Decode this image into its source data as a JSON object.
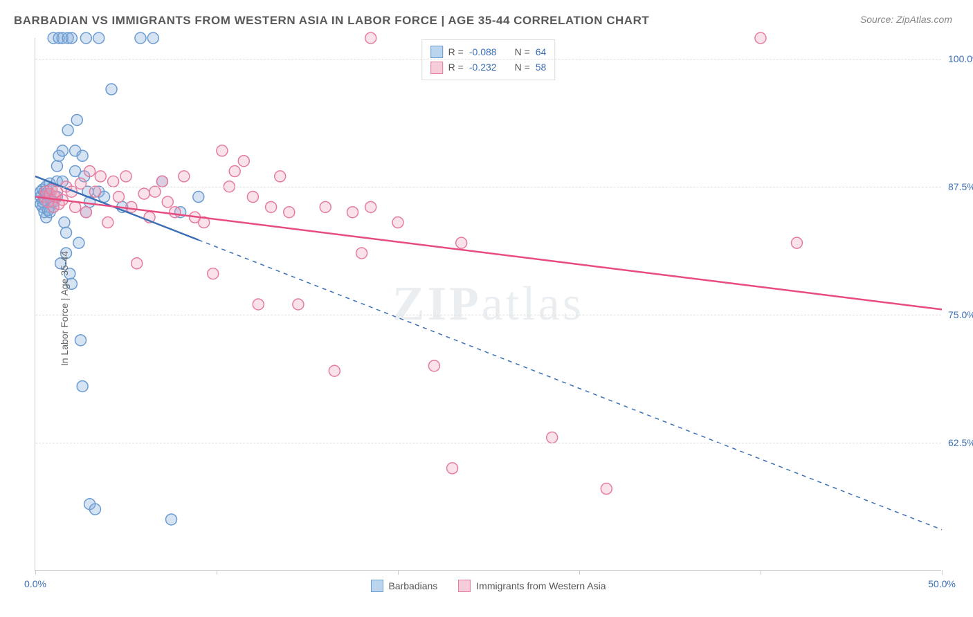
{
  "title": "BARBADIAN VS IMMIGRANTS FROM WESTERN ASIA IN LABOR FORCE | AGE 35-44 CORRELATION CHART",
  "source": "Source: ZipAtlas.com",
  "ylabel": "In Labor Force | Age 35-44",
  "watermark_bold": "ZIP",
  "watermark_light": "atlas",
  "chart": {
    "type": "scatter",
    "xlim": [
      0,
      50
    ],
    "ylim": [
      50,
      102
    ],
    "xticks": [
      0,
      10,
      20,
      30,
      40,
      50
    ],
    "xtick_labels": [
      "0.0%",
      "",
      "",
      "",
      "",
      "50.0%"
    ],
    "yticks": [
      62.5,
      75.0,
      87.5,
      100.0
    ],
    "ytick_labels": [
      "62.5%",
      "75.0%",
      "87.5%",
      "100.0%"
    ],
    "background_color": "#ffffff",
    "grid_color": "#dddddd",
    "axis_color": "#cccccc",
    "tick_label_color": "#3b6fb6",
    "marker_radius": 8,
    "marker_stroke_width": 1.5,
    "trend_line_width": 2.5,
    "series": [
      {
        "name": "Barbadians",
        "fill": "rgba(135,175,220,0.35)",
        "stroke": "#6a9bd1",
        "swatch_fill": "#bcd5ef",
        "swatch_stroke": "#6a9bd1",
        "r": -0.088,
        "n": 64,
        "trend": {
          "x1": 0,
          "y1": 88.5,
          "x2": 50,
          "y2": 54.0,
          "color": "#3b6fb6",
          "solid_until_x": 9
        },
        "points": [
          [
            0.3,
            87.0
          ],
          [
            0.3,
            85.8
          ],
          [
            0.3,
            86.5
          ],
          [
            0.4,
            87.2
          ],
          [
            0.4,
            85.5
          ],
          [
            0.4,
            86.0
          ],
          [
            0.5,
            87.0
          ],
          [
            0.5,
            85.0
          ],
          [
            0.5,
            86.2
          ],
          [
            0.6,
            86.8
          ],
          [
            0.6,
            87.5
          ],
          [
            0.6,
            84.5
          ],
          [
            0.7,
            87.0
          ],
          [
            0.7,
            85.2
          ],
          [
            0.8,
            86.5
          ],
          [
            0.8,
            87.8
          ],
          [
            0.8,
            85.0
          ],
          [
            0.9,
            86.0
          ],
          [
            0.9,
            87.3
          ],
          [
            1.0,
            86.0
          ],
          [
            1.0,
            85.5
          ],
          [
            1.0,
            102.0
          ],
          [
            1.2,
            88.0
          ],
          [
            1.2,
            86.5
          ],
          [
            1.2,
            89.5
          ],
          [
            1.3,
            90.5
          ],
          [
            1.3,
            102.0
          ],
          [
            1.4,
            80.0
          ],
          [
            1.5,
            91.0
          ],
          [
            1.5,
            88.0
          ],
          [
            1.5,
            102.0
          ],
          [
            1.6,
            84.0
          ],
          [
            1.7,
            81.0
          ],
          [
            1.7,
            83.0
          ],
          [
            1.8,
            102.0
          ],
          [
            1.8,
            93.0
          ],
          [
            1.9,
            79.0
          ],
          [
            2.0,
            78.0
          ],
          [
            2.0,
            102.0
          ],
          [
            2.2,
            91.0
          ],
          [
            2.2,
            89.0
          ],
          [
            2.3,
            94.0
          ],
          [
            2.4,
            82.0
          ],
          [
            2.5,
            72.5
          ],
          [
            2.6,
            90.5
          ],
          [
            2.6,
            68.0
          ],
          [
            2.7,
            88.5
          ],
          [
            2.8,
            102.0
          ],
          [
            2.8,
            85.0
          ],
          [
            2.9,
            87.0
          ],
          [
            3.0,
            56.5
          ],
          [
            3.0,
            86.0
          ],
          [
            3.3,
            56.0
          ],
          [
            3.5,
            102.0
          ],
          [
            3.5,
            87.0
          ],
          [
            3.8,
            86.5
          ],
          [
            4.2,
            97.0
          ],
          [
            4.8,
            85.5
          ],
          [
            5.8,
            102.0
          ],
          [
            6.5,
            102.0
          ],
          [
            7.0,
            88.0
          ],
          [
            7.5,
            55.0
          ],
          [
            8.0,
            85.0
          ],
          [
            9.0,
            86.5
          ]
        ]
      },
      {
        "name": "Immigrants from Western Asia",
        "fill": "rgba(240,160,185,0.30)",
        "stroke": "#e57ba0",
        "swatch_fill": "#f5cdd9",
        "swatch_stroke": "#e57ba0",
        "r": -0.232,
        "n": 58,
        "trend": {
          "x1": 0,
          "y1": 86.5,
          "x2": 50,
          "y2": 75.5,
          "color": "#e84c7f",
          "solid_until_x": 50
        },
        "points": [
          [
            0.5,
            86.5
          ],
          [
            0.6,
            87.0
          ],
          [
            0.7,
            86.0
          ],
          [
            0.8,
            86.8
          ],
          [
            0.9,
            87.2
          ],
          [
            1.0,
            85.5
          ],
          [
            1.1,
            86.5
          ],
          [
            1.2,
            87.0
          ],
          [
            1.3,
            85.8
          ],
          [
            1.5,
            86.2
          ],
          [
            1.7,
            87.5
          ],
          [
            2.0,
            87.0
          ],
          [
            2.2,
            85.5
          ],
          [
            2.5,
            87.8
          ],
          [
            2.8,
            85.0
          ],
          [
            3.0,
            89.0
          ],
          [
            3.3,
            87.0
          ],
          [
            3.6,
            88.5
          ],
          [
            4.0,
            84.0
          ],
          [
            4.3,
            88.0
          ],
          [
            4.6,
            86.5
          ],
          [
            5.0,
            88.5
          ],
          [
            5.3,
            85.5
          ],
          [
            5.6,
            80.0
          ],
          [
            6.0,
            86.8
          ],
          [
            6.3,
            84.5
          ],
          [
            6.6,
            87.0
          ],
          [
            7.0,
            88.0
          ],
          [
            7.3,
            86.0
          ],
          [
            7.7,
            85.0
          ],
          [
            8.2,
            88.5
          ],
          [
            8.8,
            84.5
          ],
          [
            9.3,
            84.0
          ],
          [
            9.8,
            79.0
          ],
          [
            10.3,
            91.0
          ],
          [
            10.7,
            87.5
          ],
          [
            11.0,
            89.0
          ],
          [
            11.5,
            90.0
          ],
          [
            12.0,
            86.5
          ],
          [
            12.3,
            76.0
          ],
          [
            13.0,
            85.5
          ],
          [
            13.5,
            88.5
          ],
          [
            14.0,
            85.0
          ],
          [
            14.5,
            76.0
          ],
          [
            16.0,
            85.5
          ],
          [
            16.5,
            69.5
          ],
          [
            17.5,
            85.0
          ],
          [
            18.0,
            81.0
          ],
          [
            18.5,
            85.5
          ],
          [
            20.0,
            84.0
          ],
          [
            22.0,
            70.0
          ],
          [
            23.0,
            60.0
          ],
          [
            23.5,
            82.0
          ],
          [
            28.5,
            63.0
          ],
          [
            31.5,
            58.0
          ],
          [
            18.5,
            102.0
          ],
          [
            40.0,
            102.0
          ],
          [
            42.0,
            82.0
          ]
        ]
      }
    ]
  },
  "legend_top": [
    {
      "series_idx": 0,
      "r_label": "R =",
      "n_label": "N ="
    },
    {
      "series_idx": 1,
      "r_label": "R =",
      "n_label": "N ="
    }
  ],
  "legend_bottom": [
    {
      "series_idx": 0
    },
    {
      "series_idx": 1
    }
  ]
}
